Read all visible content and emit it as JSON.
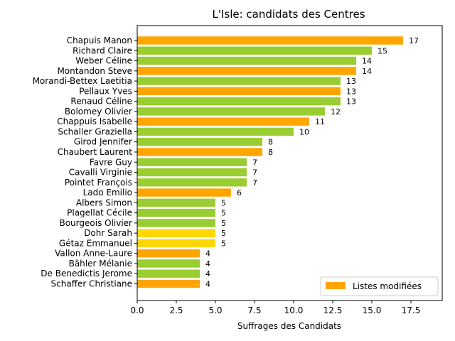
{
  "chart_data": {
    "type": "bar",
    "orientation": "horizontal",
    "title": "L'Isle: candidats des Centres",
    "xlabel": "Suffrages des Candidats",
    "ylabel": "",
    "xlim": [
      0,
      19.5
    ],
    "xticks": [
      "0.0",
      "2.5",
      "5.0",
      "7.5",
      "10.0",
      "12.5",
      "15.0",
      "17.5"
    ],
    "grid": false,
    "legend": {
      "placement": "bottom-right",
      "entries": [
        {
          "label": "Listes modifiées",
          "color": "#ffa500"
        }
      ]
    },
    "colors": {
      "orange": "#ffa500",
      "green": "#9acd32",
      "yellow": "#ffd700"
    },
    "categories": [
      "Chapuis Manon",
      "Richard Claire",
      "Weber Céline",
      "Montandon Steve",
      "Morandi-Bettex Laetitia",
      "Pellaux Yves",
      "Renaud Céline",
      "Bolomey Olivier",
      "Chappuis Isabelle",
      "Schaller Graziella",
      "Girod Jennifer",
      "Chaubert Laurent",
      "Favre Guy",
      "Cavalli Virginie",
      "Pointet François",
      "Lado Emilio",
      "Albers Simon",
      "Plagellat Cécile",
      "Bourgeois Olivier",
      "Dohr Sarah",
      "Gétaz Emmanuel",
      "Vallon Anne-Laure",
      "Bähler Mélanie",
      "De Benedictis Jerome",
      "Schaffer Christiane"
    ],
    "values": [
      17,
      15,
      14,
      14,
      13,
      13,
      13,
      12,
      11,
      10,
      8,
      8,
      7,
      7,
      7,
      6,
      5,
      5,
      5,
      5,
      5,
      4,
      4,
      4,
      4
    ],
    "value_labels": [
      "17",
      "15",
      "14",
      "14",
      "13",
      "13",
      "13",
      "12",
      "11",
      "10",
      "8",
      "8",
      "7",
      "7",
      "7",
      "6",
      "5",
      "5",
      "5",
      "5",
      "5",
      "4",
      "4",
      "4",
      "4"
    ],
    "bar_colors": [
      "orange",
      "green",
      "green",
      "orange",
      "green",
      "orange",
      "green",
      "green",
      "orange",
      "green",
      "green",
      "orange",
      "green",
      "green",
      "green",
      "orange",
      "green",
      "green",
      "green",
      "yellow",
      "yellow",
      "orange",
      "green",
      "green",
      "orange"
    ]
  }
}
